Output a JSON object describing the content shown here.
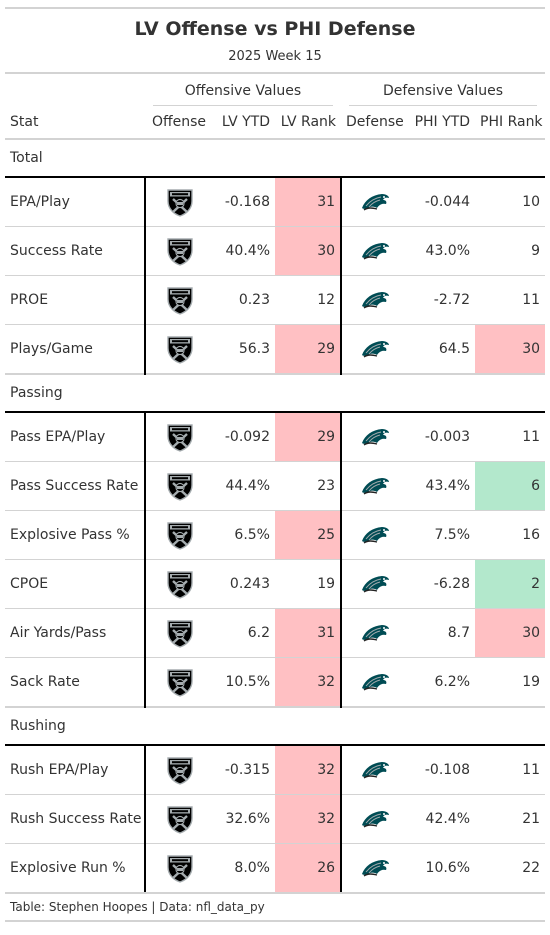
{
  "header": {
    "title": "LV Offense vs PHI Defense",
    "subtitle": "2025 Week 15"
  },
  "spanners": {
    "offense": "Offensive Values",
    "defense": "Defensive Values"
  },
  "columns": {
    "stat": "Stat",
    "offense": "Offense",
    "lv_ytd": "LV YTD",
    "lv_rank": "LV Rank",
    "defense": "Defense",
    "phi_ytd": "PHI YTD",
    "phi_rank": "PHI Rank"
  },
  "logos": {
    "offense_icon": "raiders-shield-icon",
    "defense_icon": "eagles-head-icon"
  },
  "colors": {
    "bad": "#ffc0c3",
    "good": "#b3e8cc"
  },
  "groups": [
    {
      "name": "Total",
      "rows": [
        {
          "stat": "EPA/Play",
          "lv_ytd": "-0.168",
          "lv_rank": "31",
          "lv_hl": "bad",
          "phi_ytd": "-0.044",
          "phi_rank": "10",
          "phi_hl": ""
        },
        {
          "stat": "Success Rate",
          "lv_ytd": "40.4%",
          "lv_rank": "30",
          "lv_hl": "bad",
          "phi_ytd": "43.0%",
          "phi_rank": "9",
          "phi_hl": ""
        },
        {
          "stat": "PROE",
          "lv_ytd": "0.23",
          "lv_rank": "12",
          "lv_hl": "",
          "phi_ytd": "-2.72",
          "phi_rank": "11",
          "phi_hl": ""
        },
        {
          "stat": "Plays/Game",
          "lv_ytd": "56.3",
          "lv_rank": "29",
          "lv_hl": "bad",
          "phi_ytd": "64.5",
          "phi_rank": "30",
          "phi_hl": "bad"
        }
      ]
    },
    {
      "name": "Passing",
      "rows": [
        {
          "stat": "Pass EPA/Play",
          "lv_ytd": "-0.092",
          "lv_rank": "29",
          "lv_hl": "bad",
          "phi_ytd": "-0.003",
          "phi_rank": "11",
          "phi_hl": ""
        },
        {
          "stat": "Pass Success Rate",
          "lv_ytd": "44.4%",
          "lv_rank": "23",
          "lv_hl": "",
          "phi_ytd": "43.4%",
          "phi_rank": "6",
          "phi_hl": "good"
        },
        {
          "stat": "Explosive Pass %",
          "lv_ytd": "6.5%",
          "lv_rank": "25",
          "lv_hl": "bad",
          "phi_ytd": "7.5%",
          "phi_rank": "16",
          "phi_hl": ""
        },
        {
          "stat": "CPOE",
          "lv_ytd": "0.243",
          "lv_rank": "19",
          "lv_hl": "",
          "phi_ytd": "-6.28",
          "phi_rank": "2",
          "phi_hl": "good"
        },
        {
          "stat": "Air Yards/Pass",
          "lv_ytd": "6.2",
          "lv_rank": "31",
          "lv_hl": "bad",
          "phi_ytd": "8.7",
          "phi_rank": "30",
          "phi_hl": "bad"
        },
        {
          "stat": "Sack Rate",
          "lv_ytd": "10.5%",
          "lv_rank": "32",
          "lv_hl": "bad",
          "phi_ytd": "6.2%",
          "phi_rank": "19",
          "phi_hl": ""
        }
      ]
    },
    {
      "name": "Rushing",
      "rows": [
        {
          "stat": "Rush EPA/Play",
          "lv_ytd": "-0.315",
          "lv_rank": "32",
          "lv_hl": "bad",
          "phi_ytd": "-0.108",
          "phi_rank": "11",
          "phi_hl": ""
        },
        {
          "stat": "Rush Success Rate",
          "lv_ytd": "32.6%",
          "lv_rank": "32",
          "lv_hl": "bad",
          "phi_ytd": "42.4%",
          "phi_rank": "21",
          "phi_hl": ""
        },
        {
          "stat": "Explosive Run %",
          "lv_ytd": "8.0%",
          "lv_rank": "26",
          "lv_hl": "bad",
          "phi_ytd": "10.6%",
          "phi_rank": "22",
          "phi_hl": ""
        }
      ]
    }
  ],
  "footer": {
    "source": "Table: Stephen Hoopes | Data: nfl_data_py"
  }
}
